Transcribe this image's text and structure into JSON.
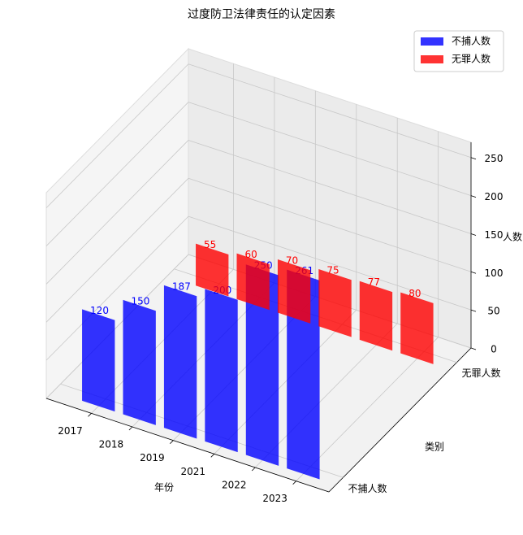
{
  "chart_data": {
    "type": "bar3d",
    "title": "过度防卫法律责任的认定因素",
    "x_label": "年份",
    "y_label": "类别",
    "z_label": "人数",
    "categories": [
      "2017",
      "2018",
      "2019",
      "2021",
      "2022",
      "2023"
    ],
    "series": [
      {
        "name": "不捕人数",
        "color": "#0000ff",
        "values": [
          120,
          150,
          187,
          200,
          250,
          261
        ]
      },
      {
        "name": "无罪人数",
        "color": "#ff0000",
        "values": [
          55,
          60,
          70,
          75,
          77,
          80
        ]
      }
    ],
    "zlim": [
      0,
      270
    ],
    "zticks": [
      0,
      50,
      100,
      150,
      200,
      250
    ],
    "grid": true,
    "legend": "upper right"
  }
}
